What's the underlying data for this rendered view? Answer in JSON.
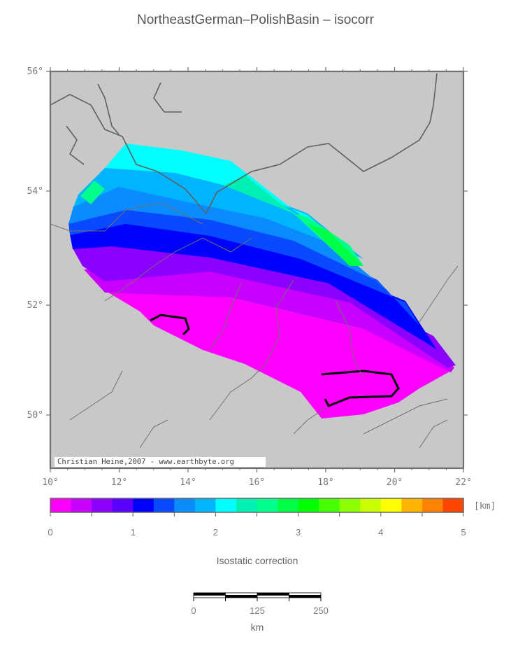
{
  "title": "NortheastGerman–PolishBasin – isocorr",
  "map": {
    "credit": "Christian Heine,2007 - www.earthbyte.org",
    "lat_ticks": [
      {
        "label": "56°",
        "value": 56
      },
      {
        "label": "54°",
        "value": 54
      },
      {
        "label": "52°",
        "value": 52
      },
      {
        "label": "50°",
        "value": 50
      }
    ],
    "lon_ticks": [
      {
        "label": "10°",
        "value": 10
      },
      {
        "label": "12°",
        "value": 12
      },
      {
        "label": "14°",
        "value": 14
      },
      {
        "label": "16°",
        "value": 16
      },
      {
        "label": "18°",
        "value": 18
      },
      {
        "label": "20°",
        "value": 20
      },
      {
        "label": "22°",
        "value": 22
      }
    ],
    "colors": {
      "land": "#c8c8c8",
      "coast": "#606060",
      "frame": "#707070",
      "contour": "#000000"
    }
  },
  "colorbar": {
    "unit": "[km]",
    "label": "Isostatic correction",
    "min": 0,
    "max": 5,
    "ticks": [
      {
        "label": "0",
        "value": 0
      },
      {
        "label": "1",
        "value": 1
      },
      {
        "label": "2",
        "value": 2
      },
      {
        "label": "3",
        "value": 3
      },
      {
        "label": "4",
        "value": 4
      },
      {
        "label": "5",
        "value": 5
      }
    ],
    "colors": [
      "#ff00ff",
      "#c800ff",
      "#8c00ff",
      "#5a00ff",
      "#0000ff",
      "#0a4aff",
      "#0a8cff",
      "#00b4ff",
      "#00ffff",
      "#00f0b4",
      "#00ff8c",
      "#00ff46",
      "#00ff00",
      "#46ff00",
      "#8cff00",
      "#c8ff00",
      "#ffff00",
      "#ffb400",
      "#ff8200",
      "#ff4600"
    ]
  },
  "scalebar": {
    "ticks": [
      {
        "label": "0",
        "value": 0
      },
      {
        "label": "125",
        "value": 125
      },
      {
        "label": "250",
        "value": 250
      }
    ],
    "unit": "km"
  }
}
